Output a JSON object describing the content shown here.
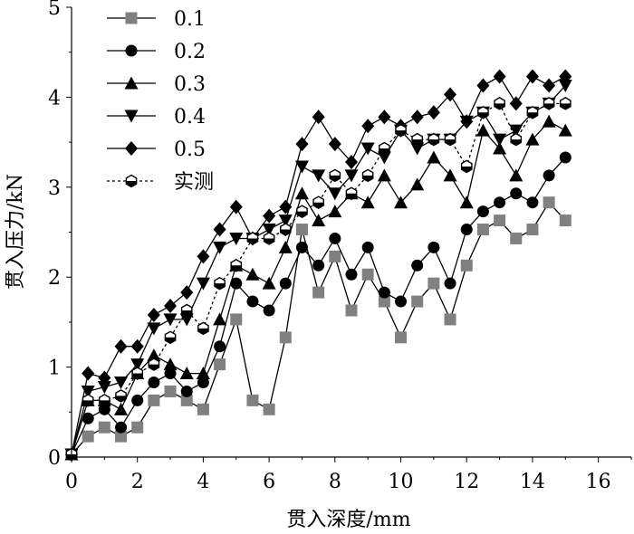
{
  "chart_data": {
    "type": "line",
    "xlabel": "贯入深度/mm",
    "ylabel": "贯入压力/kN",
    "xlim": [
      0,
      17
    ],
    "ylim": [
      0,
      5
    ],
    "xticks": [
      "0",
      "2",
      "4",
      "6",
      "8",
      "10",
      "12",
      "14",
      "16"
    ],
    "yticks": [
      "0",
      "1",
      "2",
      "3",
      "4",
      "5"
    ],
    "legend_position": "top-left",
    "series": [
      {
        "name": "0.1",
        "marker": "square",
        "color": "#808080",
        "line": "solid",
        "points": [
          [
            0,
            0.03
          ],
          [
            0.5,
            0.23
          ],
          [
            1,
            0.33
          ],
          [
            1.5,
            0.23
          ],
          [
            2,
            0.33
          ],
          [
            2.5,
            0.63
          ],
          [
            3,
            0.73
          ],
          [
            3.5,
            0.63
          ],
          [
            4,
            0.53
          ],
          [
            4.5,
            1.03
          ],
          [
            5,
            1.53
          ],
          [
            5.5,
            0.63
          ],
          [
            6,
            0.53
          ],
          [
            6.5,
            1.33
          ],
          [
            7,
            2.53
          ],
          [
            7.5,
            1.83
          ],
          [
            8,
            2.23
          ],
          [
            8.5,
            1.63
          ],
          [
            9,
            2.03
          ],
          [
            9.5,
            1.73
          ],
          [
            10,
            1.33
          ],
          [
            10.5,
            1.73
          ],
          [
            11,
            1.93
          ],
          [
            11.5,
            1.53
          ],
          [
            12,
            2.13
          ],
          [
            12.5,
            2.53
          ],
          [
            13,
            2.63
          ],
          [
            13.5,
            2.43
          ],
          [
            14,
            2.53
          ],
          [
            14.5,
            2.83
          ],
          [
            15,
            2.63
          ]
        ]
      },
      {
        "name": "0.2",
        "marker": "circle",
        "color": "#000000",
        "line": "solid",
        "points": [
          [
            0,
            0.03
          ],
          [
            0.5,
            0.43
          ],
          [
            1,
            0.53
          ],
          [
            1.5,
            0.33
          ],
          [
            2,
            0.63
          ],
          [
            2.5,
            0.83
          ],
          [
            3,
            0.93
          ],
          [
            3.5,
            0.73
          ],
          [
            4,
            0.83
          ],
          [
            4.5,
            1.23
          ],
          [
            5,
            1.93
          ],
          [
            5.5,
            1.73
          ],
          [
            6,
            1.63
          ],
          [
            6.5,
            1.93
          ],
          [
            7,
            2.33
          ],
          [
            7.5,
            2.13
          ],
          [
            8,
            2.43
          ],
          [
            8.5,
            2.03
          ],
          [
            9,
            2.33
          ],
          [
            9.5,
            1.83
          ],
          [
            10,
            1.73
          ],
          [
            10.5,
            2.13
          ],
          [
            11,
            2.33
          ],
          [
            11.5,
            1.93
          ],
          [
            12,
            2.53
          ],
          [
            12.5,
            2.73
          ],
          [
            13,
            2.83
          ],
          [
            13.5,
            2.93
          ],
          [
            14,
            2.83
          ],
          [
            14.5,
            3.13
          ],
          [
            15,
            3.33
          ]
        ]
      },
      {
        "name": "0.3",
        "marker": "triangle-up",
        "color": "#000000",
        "line": "solid",
        "points": [
          [
            0,
            0.03
          ],
          [
            0.5,
            0.63
          ],
          [
            1,
            0.63
          ],
          [
            1.5,
            0.53
          ],
          [
            2,
            0.93
          ],
          [
            2.5,
            1.13
          ],
          [
            3,
            1.03
          ],
          [
            3.5,
            0.93
          ],
          [
            4,
            0.93
          ],
          [
            4.5,
            1.53
          ],
          [
            5,
            2.13
          ],
          [
            5.5,
            2.03
          ],
          [
            6,
            1.93
          ],
          [
            6.5,
            2.33
          ],
          [
            7,
            2.93
          ],
          [
            7.5,
            2.63
          ],
          [
            8,
            2.73
          ],
          [
            8.5,
            2.93
          ],
          [
            9,
            2.83
          ],
          [
            9.5,
            3.13
          ],
          [
            10,
            2.83
          ],
          [
            10.5,
            3.03
          ],
          [
            11,
            3.33
          ],
          [
            11.5,
            3.13
          ],
          [
            12,
            2.83
          ],
          [
            12.5,
            3.63
          ],
          [
            13,
            3.43
          ],
          [
            13.5,
            3.13
          ],
          [
            14,
            3.53
          ],
          [
            14.5,
            3.73
          ],
          [
            15,
            3.63
          ]
        ]
      },
      {
        "name": "0.4",
        "marker": "triangle-down",
        "color": "#000000",
        "line": "solid",
        "points": [
          [
            0,
            0.03
          ],
          [
            0.5,
            0.73
          ],
          [
            1,
            0.78
          ],
          [
            1.5,
            0.83
          ],
          [
            2,
            1.03
          ],
          [
            2.5,
            1.43
          ],
          [
            3,
            1.53
          ],
          [
            3.5,
            1.53
          ],
          [
            4,
            1.93
          ],
          [
            4.5,
            2.33
          ],
          [
            5,
            2.43
          ],
          [
            5.5,
            2.43
          ],
          [
            6,
            2.53
          ],
          [
            6.5,
            2.63
          ],
          [
            7,
            3.23
          ],
          [
            7.5,
            3.13
          ],
          [
            8,
            2.93
          ],
          [
            8.5,
            3.13
          ],
          [
            9,
            3.43
          ],
          [
            9.5,
            3.33
          ],
          [
            10,
            3.63
          ],
          [
            10.5,
            3.43
          ],
          [
            11,
            3.53
          ],
          [
            11.5,
            3.53
          ],
          [
            12,
            3.73
          ],
          [
            12.5,
            3.83
          ],
          [
            13,
            3.53
          ],
          [
            13.5,
            3.63
          ],
          [
            14,
            3.83
          ],
          [
            14.5,
            3.93
          ],
          [
            15,
            4.13
          ]
        ]
      },
      {
        "name": "0.5",
        "marker": "diamond",
        "color": "#000000",
        "line": "solid",
        "points": [
          [
            0,
            0.03
          ],
          [
            0.5,
            0.93
          ],
          [
            1,
            0.88
          ],
          [
            1.5,
            1.23
          ],
          [
            2,
            1.23
          ],
          [
            2.5,
            1.58
          ],
          [
            3,
            1.68
          ],
          [
            3.5,
            1.83
          ],
          [
            4,
            2.23
          ],
          [
            4.5,
            2.53
          ],
          [
            5,
            2.78
          ],
          [
            5.5,
            2.43
          ],
          [
            6,
            2.68
          ],
          [
            6.5,
            2.78
          ],
          [
            7,
            3.48
          ],
          [
            7.5,
            3.78
          ],
          [
            8,
            3.48
          ],
          [
            8.5,
            3.28
          ],
          [
            9,
            3.68
          ],
          [
            9.5,
            3.78
          ],
          [
            10,
            3.68
          ],
          [
            10.5,
            3.78
          ],
          [
            11,
            3.83
          ],
          [
            11.5,
            4.03
          ],
          [
            12,
            3.73
          ],
          [
            12.5,
            4.13
          ],
          [
            13,
            4.23
          ],
          [
            13.5,
            3.93
          ],
          [
            14,
            4.23
          ],
          [
            14.5,
            4.13
          ],
          [
            15,
            4.23
          ]
        ]
      },
      {
        "name": "实测",
        "marker": "half-hexagon",
        "color": "#000000",
        "line": "dotted",
        "points": [
          [
            0,
            0.03
          ],
          [
            0.5,
            0.63
          ],
          [
            1,
            0.63
          ],
          [
            1.5,
            0.68
          ],
          [
            2,
            0.93
          ],
          [
            2.5,
            1.03
          ],
          [
            3,
            1.33
          ],
          [
            3.5,
            1.63
          ],
          [
            4,
            1.43
          ],
          [
            4.5,
            1.93
          ],
          [
            5,
            2.13
          ],
          [
            5.5,
            2.43
          ],
          [
            6,
            2.43
          ],
          [
            6.5,
            2.53
          ],
          [
            7,
            2.73
          ],
          [
            7.5,
            2.83
          ],
          [
            8,
            3.13
          ],
          [
            8.5,
            2.93
          ],
          [
            9,
            3.13
          ],
          [
            9.5,
            3.43
          ],
          [
            10,
            3.63
          ],
          [
            10.5,
            3.53
          ],
          [
            11,
            3.53
          ],
          [
            11.5,
            3.53
          ],
          [
            12,
            3.23
          ],
          [
            12.5,
            3.83
          ],
          [
            13,
            3.93
          ],
          [
            13.5,
            3.53
          ],
          [
            14,
            3.83
          ],
          [
            14.5,
            3.93
          ],
          [
            15,
            3.93
          ]
        ]
      }
    ]
  }
}
